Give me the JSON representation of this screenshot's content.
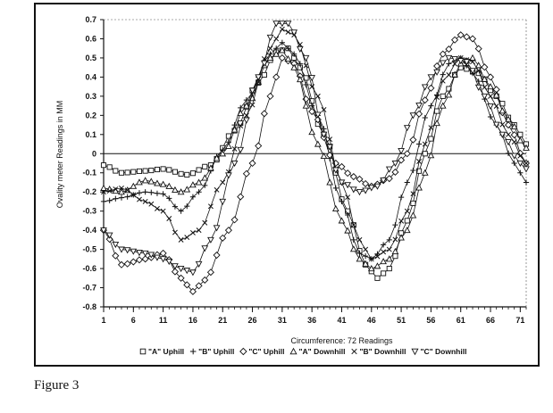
{
  "caption": "Figure 3",
  "chart_data": {
    "type": "line",
    "xlabel": "Circumference: 72 Readings",
    "ylabel": "Ovality meter Readings in MM",
    "xlim": [
      1,
      72
    ],
    "ylim": [
      -0.8,
      0.7
    ],
    "x_ticks": [
      1,
      6,
      11,
      16,
      21,
      26,
      31,
      36,
      41,
      46,
      51,
      56,
      61,
      66,
      71
    ],
    "y_ticks": [
      0.7,
      0.6,
      0.5,
      0.4,
      0.3,
      0.2,
      0.1,
      0,
      -0.1,
      -0.2,
      -0.3,
      -0.4,
      -0.5,
      -0.6,
      -0.7,
      -0.8
    ],
    "y_tick_labels": [
      "0.7",
      "0.6",
      "0.5",
      "0.4",
      "0.3",
      "0.2",
      "0.1",
      "0",
      "-0.1",
      "-0.2",
      "-0.3",
      "-0.4",
      "-0.5",
      "-0.6",
      "-0.7",
      "-0.8"
    ],
    "grid": false,
    "legend_position": "bottom",
    "series": [
      {
        "name": "\"A\" Uphill",
        "marker": "square",
        "key": [
          [
            1,
            -0.06
          ],
          [
            4,
            -0.1
          ],
          [
            8,
            -0.09
          ],
          [
            11,
            -0.08
          ],
          [
            15,
            -0.11
          ],
          [
            19,
            -0.06
          ],
          [
            23,
            0.12
          ],
          [
            27,
            0.37
          ],
          [
            30,
            0.53
          ],
          [
            32,
            0.55
          ],
          [
            34,
            0.45
          ],
          [
            38,
            0.1
          ],
          [
            42,
            -0.3
          ],
          [
            45,
            -0.58
          ],
          [
            47,
            -0.65
          ],
          [
            49,
            -0.6
          ],
          [
            52,
            -0.35
          ],
          [
            55,
            0.0
          ],
          [
            58,
            0.3
          ],
          [
            61,
            0.45
          ],
          [
            64,
            0.42
          ],
          [
            67,
            0.3
          ],
          [
            70,
            0.15
          ],
          [
            72,
            0.05
          ]
        ]
      },
      {
        "name": "\"B\" Uphill",
        "marker": "plus",
        "key": [
          [
            1,
            -0.25
          ],
          [
            4,
            -0.23
          ],
          [
            8,
            -0.2
          ],
          [
            11,
            -0.21
          ],
          [
            14,
            -0.3
          ],
          [
            17,
            -0.2
          ],
          [
            21,
            0.02
          ],
          [
            25,
            0.28
          ],
          [
            29,
            0.52
          ],
          [
            31,
            0.58
          ],
          [
            33,
            0.52
          ],
          [
            37,
            0.2
          ],
          [
            41,
            -0.25
          ],
          [
            44,
            -0.52
          ],
          [
            46,
            -0.55
          ],
          [
            49,
            -0.45
          ],
          [
            52,
            -0.15
          ],
          [
            56,
            0.25
          ],
          [
            59,
            0.47
          ],
          [
            61,
            0.5
          ],
          [
            63,
            0.42
          ],
          [
            67,
            0.15
          ],
          [
            70,
            -0.05
          ],
          [
            72,
            -0.15
          ]
        ]
      },
      {
        "name": "\"C\" Uphill",
        "marker": "diamond",
        "key": [
          [
            1,
            -0.4
          ],
          [
            4,
            -0.58
          ],
          [
            8,
            -0.55
          ],
          [
            11,
            -0.52
          ],
          [
            14,
            -0.65
          ],
          [
            16,
            -0.72
          ],
          [
            18,
            -0.66
          ],
          [
            22,
            -0.4
          ],
          [
            26,
            -0.05
          ],
          [
            29,
            0.3
          ],
          [
            31,
            0.5
          ],
          [
            33,
            0.47
          ],
          [
            36,
            0.22
          ],
          [
            40,
            -0.05
          ],
          [
            43,
            -0.12
          ],
          [
            46,
            -0.17
          ],
          [
            49,
            -0.13
          ],
          [
            52,
            0.0
          ],
          [
            55,
            0.28
          ],
          [
            58,
            0.52
          ],
          [
            61,
            0.62
          ],
          [
            63,
            0.6
          ],
          [
            66,
            0.4
          ],
          [
            69,
            0.15
          ],
          [
            72,
            -0.05
          ]
        ]
      },
      {
        "name": "\"A\" Downhill",
        "marker": "triangle",
        "key": [
          [
            1,
            -0.18
          ],
          [
            4,
            -0.2
          ],
          [
            8,
            -0.14
          ],
          [
            11,
            -0.16
          ],
          [
            14,
            -0.2
          ],
          [
            17,
            -0.15
          ],
          [
            21,
            0.0
          ],
          [
            25,
            0.25
          ],
          [
            29,
            0.5
          ],
          [
            31,
            0.54
          ],
          [
            33,
            0.45
          ],
          [
            37,
            0.05
          ],
          [
            41,
            -0.35
          ],
          [
            44,
            -0.55
          ],
          [
            46,
            -0.6
          ],
          [
            49,
            -0.55
          ],
          [
            52,
            -0.4
          ],
          [
            55,
            -0.1
          ],
          [
            58,
            0.25
          ],
          [
            61,
            0.47
          ],
          [
            63,
            0.5
          ],
          [
            66,
            0.35
          ],
          [
            69,
            0.18
          ],
          [
            72,
            0.03
          ]
        ]
      },
      {
        "name": "\"B\" Downhill",
        "marker": "x",
        "key": [
          [
            1,
            -0.2
          ],
          [
            4,
            -0.18
          ],
          [
            8,
            -0.25
          ],
          [
            11,
            -0.3
          ],
          [
            14,
            -0.45
          ],
          [
            17,
            -0.4
          ],
          [
            21,
            -0.15
          ],
          [
            25,
            0.2
          ],
          [
            29,
            0.55
          ],
          [
            31,
            0.65
          ],
          [
            33,
            0.62
          ],
          [
            37,
            0.3
          ],
          [
            41,
            -0.15
          ],
          [
            44,
            -0.45
          ],
          [
            46,
            -0.55
          ],
          [
            49,
            -0.5
          ],
          [
            52,
            -0.3
          ],
          [
            55,
            0.05
          ],
          [
            58,
            0.38
          ],
          [
            61,
            0.5
          ],
          [
            63,
            0.48
          ],
          [
            66,
            0.3
          ],
          [
            69,
            0.1
          ],
          [
            72,
            -0.05
          ]
        ]
      },
      {
        "name": "\"C\" Downhill",
        "marker": "triangle-down",
        "key": [
          [
            1,
            -0.4
          ],
          [
            4,
            -0.5
          ],
          [
            8,
            -0.52
          ],
          [
            11,
            -0.55
          ],
          [
            14,
            -0.6
          ],
          [
            16,
            -0.62
          ],
          [
            19,
            -0.45
          ],
          [
            23,
            -0.05
          ],
          [
            27,
            0.4
          ],
          [
            30,
            0.68
          ],
          [
            32,
            0.68
          ],
          [
            35,
            0.5
          ],
          [
            38,
            0.1
          ],
          [
            41,
            -0.15
          ],
          [
            44,
            -0.2
          ],
          [
            47,
            -0.17
          ],
          [
            50,
            -0.05
          ],
          [
            53,
            0.2
          ],
          [
            56,
            0.4
          ],
          [
            59,
            0.5
          ],
          [
            62,
            0.48
          ],
          [
            65,
            0.3
          ],
          [
            68,
            0.1
          ],
          [
            71,
            -0.05
          ],
          [
            72,
            -0.08
          ]
        ]
      }
    ]
  }
}
